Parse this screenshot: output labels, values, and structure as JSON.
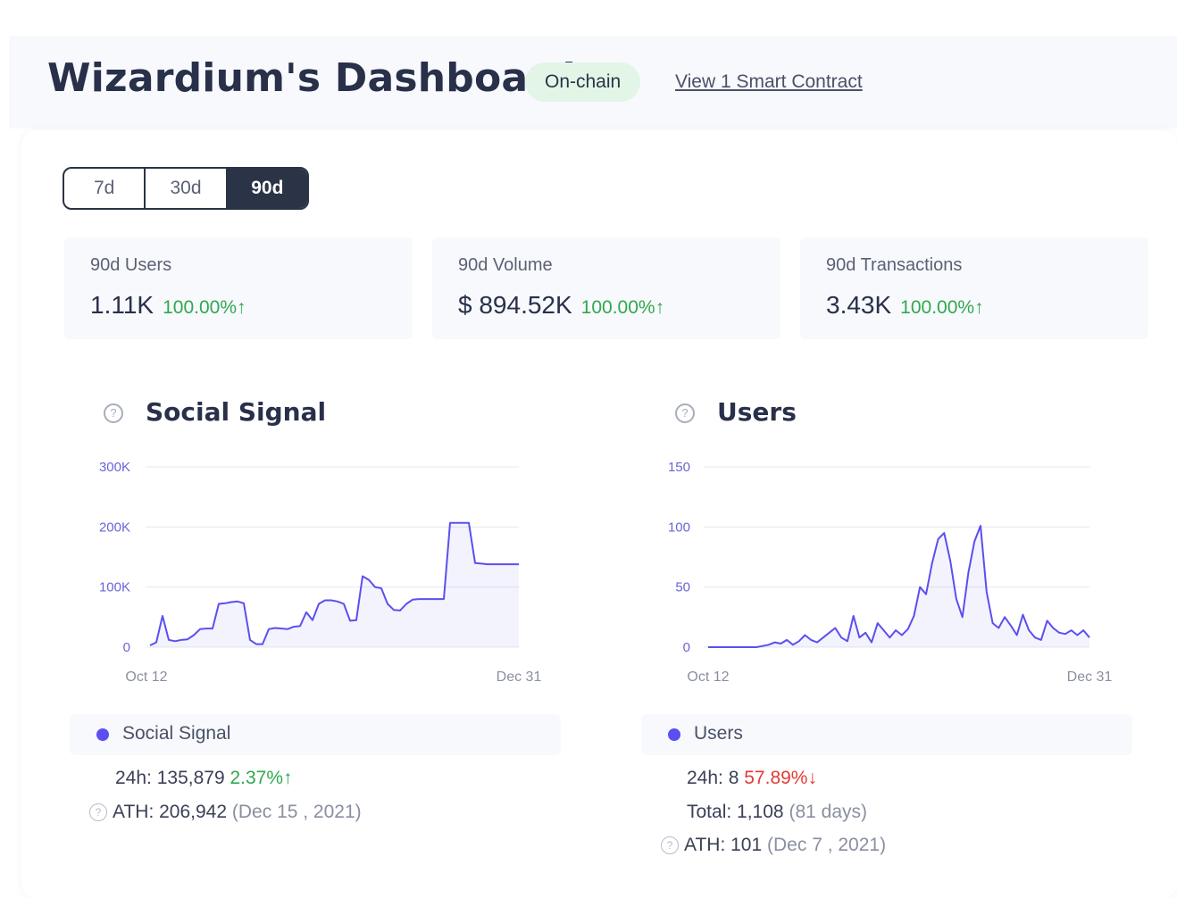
{
  "header": {
    "title": "Wizardium's Dashboards",
    "badge": "On-chain",
    "contract_link": "View 1 Smart Contract"
  },
  "periods": {
    "items": [
      "7d",
      "30d",
      "90d"
    ],
    "selected": "90d"
  },
  "stats": [
    {
      "label": "90d Users",
      "value": "1.11K",
      "change": "100.00%↑"
    },
    {
      "label": "90d Volume",
      "value": "$ 894.52K",
      "change": "100.00%↑"
    },
    {
      "label": "90d Transactions",
      "value": "3.43K",
      "change": "100.00%↑"
    }
  ],
  "colors": {
    "accent": "#5b4ff0",
    "dark": "#2b3346",
    "positive": "#2fa84f",
    "negative": "#e53935"
  },
  "panels": {
    "social": {
      "title": "Social Signal",
      "legend": "Social Signal",
      "h24_label": "24h:",
      "h24_value": "135,879",
      "h24_change": "2.37%↑",
      "ath_label": "ATH:",
      "ath_value": "206,942",
      "ath_date": "(Dec 15 , 2021)"
    },
    "users": {
      "title": "Users",
      "legend": "Users",
      "h24_label": "24h:",
      "h24_value": "8",
      "h24_change": "57.89%↓",
      "total_label": "Total:",
      "total_value": "1,108",
      "total_days": "(81 days)",
      "ath_label": "ATH:",
      "ath_value": "101",
      "ath_date": "(Dec 7 , 2021)"
    }
  },
  "chart_data": [
    {
      "type": "area",
      "title": "Social Signal",
      "xlabel": "",
      "ylabel": "",
      "x_ticks": [
        "Oct 12",
        "Dec 31"
      ],
      "y_ticks": [
        "0",
        "100K",
        "200K",
        "300K"
      ],
      "ylim": [
        0,
        300000
      ],
      "grid": true,
      "series": [
        {
          "name": "Social Signal",
          "values": [
            3000,
            8000,
            52000,
            12000,
            10000,
            12000,
            13000,
            20000,
            30000,
            31000,
            31000,
            72000,
            73000,
            75000,
            76000,
            73000,
            12000,
            5000,
            5000,
            30000,
            32000,
            31000,
            30000,
            34000,
            35000,
            58000,
            45000,
            72000,
            78000,
            78000,
            76000,
            72000,
            44000,
            45000,
            118000,
            112000,
            100000,
            98000,
            72000,
            62000,
            61000,
            72000,
            79000,
            80000,
            80000,
            80000,
            80000,
            80000,
            206942,
            206942,
            206942,
            206942,
            140000,
            139000,
            138000,
            138000,
            138000,
            138000,
            138000,
            138000
          ],
          "color": "#5b4ff0"
        }
      ]
    },
    {
      "type": "area",
      "title": "Users",
      "xlabel": "",
      "ylabel": "",
      "x_ticks": [
        "Oct 12",
        "Dec 31"
      ],
      "y_ticks": [
        "0",
        "50",
        "100",
        "150"
      ],
      "ylim": [
        0,
        150
      ],
      "grid": true,
      "series": [
        {
          "name": "Users",
          "values": [
            0,
            0,
            0,
            0,
            0,
            0,
            0,
            0,
            0,
            1,
            2,
            4,
            3,
            6,
            2,
            5,
            10,
            6,
            4,
            8,
            12,
            16,
            8,
            5,
            26,
            8,
            12,
            4,
            20,
            14,
            8,
            14,
            10,
            15,
            26,
            50,
            44,
            70,
            90,
            95,
            72,
            40,
            25,
            62,
            88,
            101,
            46,
            20,
            16,
            25,
            18,
            10,
            27,
            14,
            8,
            6,
            22,
            16,
            12,
            11,
            14,
            10,
            14,
            8
          ],
          "color": "#5b4ff0"
        }
      ]
    }
  ]
}
